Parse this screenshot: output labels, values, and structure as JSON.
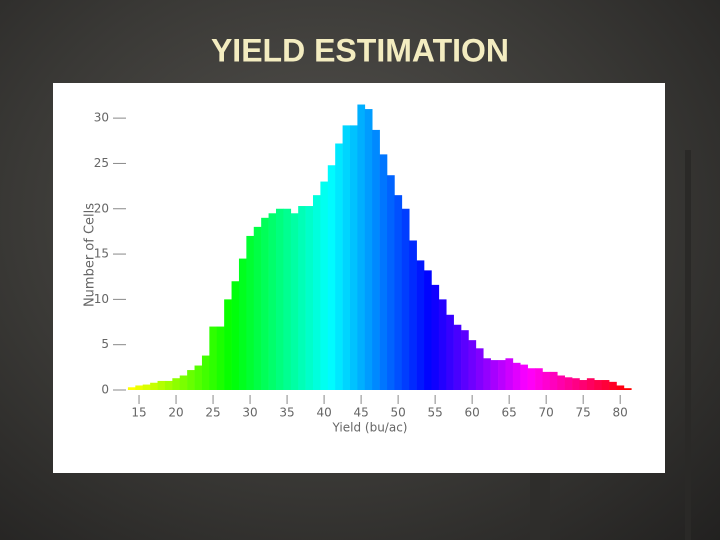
{
  "chart_data": {
    "type": "histogram",
    "title": "YIELD ESTIMATION",
    "x_label": "Yield (bu/ac)",
    "y_label": "Number of Cells",
    "bins": [
      13.5,
      14.5,
      15.5,
      16.5,
      17.5,
      18.5,
      19.5,
      20.5,
      21.5,
      22.5,
      23.5,
      24.5,
      25.5,
      26.5,
      27.5,
      28.5,
      29.5,
      30.5,
      31.5,
      32.5,
      33.5,
      34.5,
      35.5,
      36.5,
      37.5,
      38.5,
      39.5,
      40.5,
      41.5,
      42.5,
      43.5,
      44.5,
      45.5,
      46.5,
      47.5,
      48.5,
      49.5,
      50.5,
      51.5,
      52.5,
      53.5,
      54.5,
      55.5,
      56.5,
      57.5,
      58.5,
      59.5,
      60.5,
      61.5,
      62.5,
      63.5,
      64.5,
      65.5,
      66.5,
      67.5,
      68.5,
      69.5,
      70.5,
      71.5,
      72.5,
      73.5,
      74.5,
      75.5,
      76.5,
      77.5,
      78.5,
      79.5,
      80.5,
      81.5
    ],
    "values": [
      0.3,
      0.5,
      0.6,
      0.8,
      1,
      1,
      1.3,
      1.6,
      2.2,
      2.7,
      3.8,
      7,
      7,
      10,
      12,
      14.5,
      17,
      18,
      19,
      19.5,
      20,
      20,
      19.5,
      20.3,
      20.3,
      21.5,
      23,
      24.8,
      27.2,
      29.2,
      29.2,
      31.5,
      31,
      28.7,
      26,
      23.7,
      21.5,
      20,
      16.5,
      14.3,
      13.2,
      11.6,
      10,
      8.3,
      7.2,
      6.6,
      5.5,
      4.6,
      3.5,
      3.3,
      3.3,
      3.5,
      3,
      2.8,
      2.4,
      2.4,
      2,
      2,
      1.6,
      1.4,
      1.3,
      1.1,
      1.3,
      1.1,
      1.1,
      0.9,
      0.5,
      0.2
    ],
    "xlim": [
      12.7,
      82
    ],
    "ylim": [
      0,
      32
    ],
    "xticks": [
      15,
      20,
      25,
      30,
      35,
      40,
      45,
      50,
      55,
      60,
      65,
      70,
      75,
      80
    ],
    "yticks": [
      0,
      5,
      10,
      15,
      20,
      25,
      30
    ]
  }
}
